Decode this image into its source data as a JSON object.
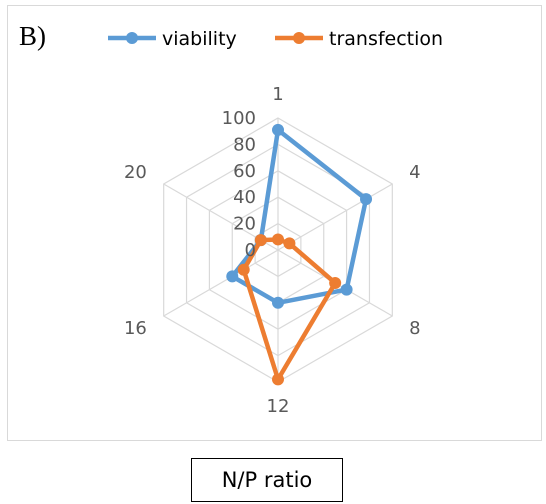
{
  "panel_label": "B)",
  "chart_data": {
    "type": "radar",
    "categories": [
      "1",
      "4",
      "8",
      "12",
      "16",
      "20"
    ],
    "series": [
      {
        "name": "viability",
        "color": "#5b9bd5",
        "values": [
          91,
          77,
          60,
          40,
          40,
          15
        ]
      },
      {
        "name": "transfection",
        "color": "#ed7d31",
        "values": [
          8,
          10,
          50,
          98,
          30,
          15
        ]
      }
    ],
    "ticks": [
      "0",
      "20",
      "40",
      "60",
      "80",
      "100"
    ],
    "rlim": [
      0,
      100
    ],
    "grid": true,
    "legend": "top",
    "xlabel": "N/P ratio"
  }
}
